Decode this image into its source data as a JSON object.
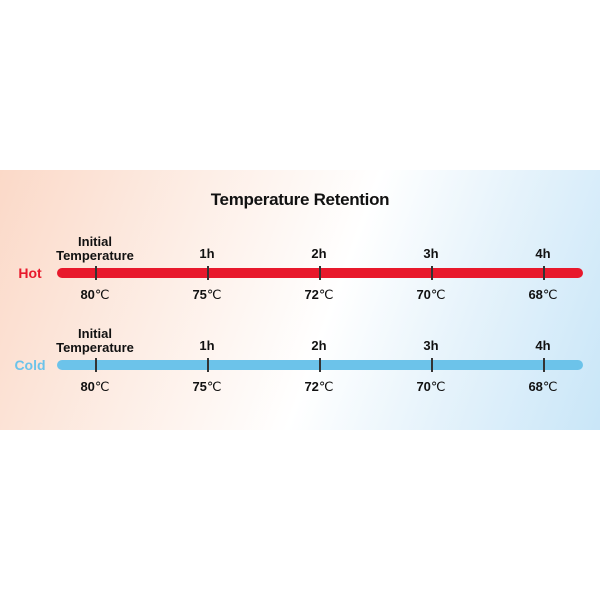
{
  "title": "Temperature Retention",
  "times": [
    "Initial Temperature",
    "1h",
    "2h",
    "3h",
    "4h"
  ],
  "rows": [
    {
      "label": "Hot",
      "color": "#e8192c",
      "label_color": "#e8192c",
      "values": [
        "80",
        "75",
        "72",
        "70",
        "68"
      ],
      "unit": "℃"
    },
    {
      "label": "Cold",
      "color": "#6cc3ea",
      "label_color": "#6cc3ea",
      "values": [
        "80",
        "75",
        "72",
        "70",
        "68"
      ],
      "unit": "℃"
    }
  ]
}
